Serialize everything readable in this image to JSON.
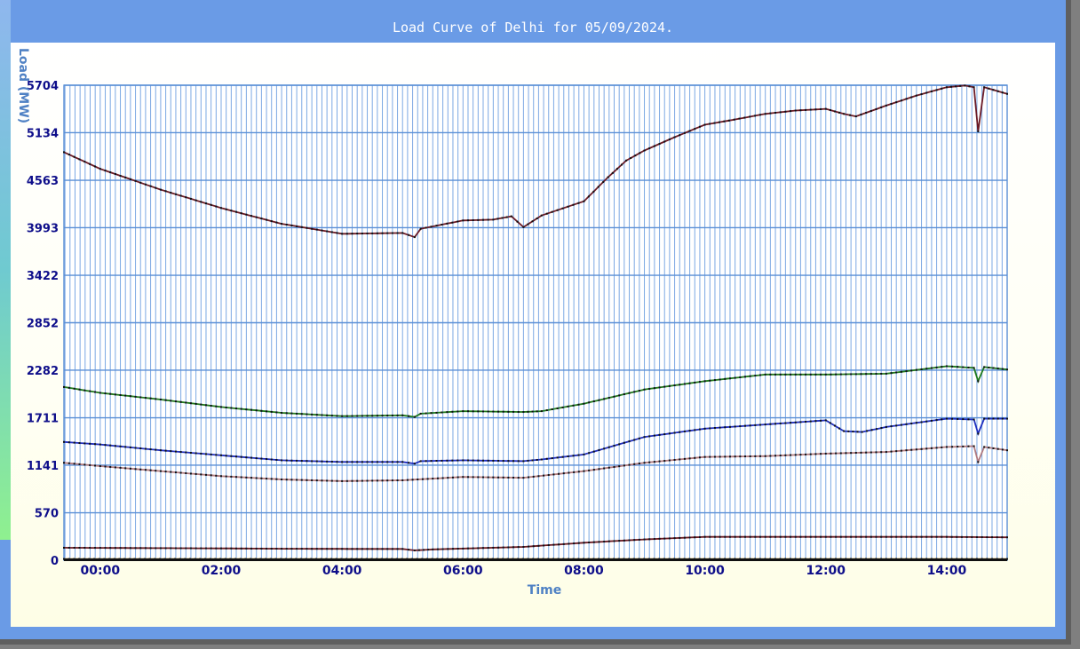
{
  "window": {
    "title": "Load Curve of Delhi for 05/09/2024."
  },
  "colors": {
    "frame": "#6a9be6",
    "grid": "#6e9fe0",
    "series": [
      "#6b1a26",
      "#1e7a1e",
      "#1f2fbf",
      "#b07a80",
      "#6b1a26",
      "#b08000"
    ]
  },
  "chart_data": {
    "type": "line",
    "title": "Load Curve of Delhi for 05/09/2024.",
    "xlabel": "Time",
    "ylabel": "Load (MW)",
    "ylim": [
      0,
      5704
    ],
    "xlim_hours": [
      -0.6,
      15.0
    ],
    "y_ticks": [
      0,
      570,
      1141,
      1711,
      2282,
      2852,
      3422,
      3993,
      4563,
      5134,
      5704
    ],
    "x_ticks": [
      "00:00",
      "02:00",
      "04:00",
      "06:00",
      "08:00",
      "10:00",
      "12:00",
      "14:00"
    ],
    "x_tick_hours": [
      0,
      2,
      4,
      6,
      8,
      10,
      12,
      14
    ],
    "grid": true,
    "legend": "none",
    "series": [
      {
        "points": [
          [
            -0.6,
            4900
          ],
          [
            0.0,
            4700
          ],
          [
            1.0,
            4450
          ],
          [
            2.0,
            4230
          ],
          [
            3.0,
            4040
          ],
          [
            4.0,
            3920
          ],
          [
            5.0,
            3930
          ],
          [
            5.2,
            3880
          ],
          [
            5.3,
            3980
          ],
          [
            6.0,
            4080
          ],
          [
            6.5,
            4090
          ],
          [
            6.8,
            4130
          ],
          [
            7.0,
            4000
          ],
          [
            7.3,
            4140
          ],
          [
            8.0,
            4310
          ],
          [
            8.4,
            4600
          ],
          [
            8.7,
            4800
          ],
          [
            9.0,
            4920
          ],
          [
            9.5,
            5080
          ],
          [
            10.0,
            5230
          ],
          [
            10.4,
            5280
          ],
          [
            11.0,
            5360
          ],
          [
            11.5,
            5400
          ],
          [
            12.0,
            5420
          ],
          [
            12.3,
            5360
          ],
          [
            12.5,
            5330
          ],
          [
            13.0,
            5460
          ],
          [
            13.5,
            5580
          ],
          [
            14.0,
            5680
          ],
          [
            14.3,
            5700
          ],
          [
            14.45,
            5680
          ],
          [
            14.52,
            5150
          ],
          [
            14.62,
            5680
          ],
          [
            15.0,
            5600
          ]
        ]
      },
      {
        "points": [
          [
            -0.6,
            2080
          ],
          [
            0.0,
            2010
          ],
          [
            1.0,
            1930
          ],
          [
            2.0,
            1840
          ],
          [
            3.0,
            1770
          ],
          [
            4.0,
            1730
          ],
          [
            5.0,
            1740
          ],
          [
            5.2,
            1720
          ],
          [
            5.3,
            1760
          ],
          [
            6.0,
            1790
          ],
          [
            7.0,
            1780
          ],
          [
            7.3,
            1790
          ],
          [
            8.0,
            1880
          ],
          [
            9.0,
            2050
          ],
          [
            10.0,
            2150
          ],
          [
            11.0,
            2230
          ],
          [
            12.0,
            2230
          ],
          [
            13.0,
            2240
          ],
          [
            14.0,
            2330
          ],
          [
            14.45,
            2310
          ],
          [
            14.52,
            2150
          ],
          [
            14.62,
            2320
          ],
          [
            15.0,
            2290
          ]
        ]
      },
      {
        "points": [
          [
            -0.6,
            1420
          ],
          [
            0.0,
            1390
          ],
          [
            1.0,
            1320
          ],
          [
            2.0,
            1260
          ],
          [
            3.0,
            1200
          ],
          [
            4.0,
            1180
          ],
          [
            5.0,
            1180
          ],
          [
            5.2,
            1160
          ],
          [
            5.3,
            1190
          ],
          [
            6.0,
            1200
          ],
          [
            7.0,
            1190
          ],
          [
            7.3,
            1210
          ],
          [
            8.0,
            1270
          ],
          [
            9.0,
            1480
          ],
          [
            10.0,
            1580
          ],
          [
            11.0,
            1630
          ],
          [
            12.0,
            1680
          ],
          [
            12.3,
            1550
          ],
          [
            12.6,
            1540
          ],
          [
            13.0,
            1600
          ],
          [
            14.0,
            1700
          ],
          [
            14.45,
            1690
          ],
          [
            14.52,
            1520
          ],
          [
            14.62,
            1700
          ],
          [
            15.0,
            1700
          ]
        ]
      },
      {
        "points": [
          [
            -0.6,
            1170
          ],
          [
            0.0,
            1130
          ],
          [
            1.0,
            1070
          ],
          [
            2.0,
            1010
          ],
          [
            3.0,
            970
          ],
          [
            4.0,
            950
          ],
          [
            5.0,
            960
          ],
          [
            6.0,
            1000
          ],
          [
            7.0,
            990
          ],
          [
            8.0,
            1070
          ],
          [
            9.0,
            1170
          ],
          [
            10.0,
            1240
          ],
          [
            11.0,
            1250
          ],
          [
            12.0,
            1280
          ],
          [
            13.0,
            1300
          ],
          [
            14.0,
            1360
          ],
          [
            14.45,
            1370
          ],
          [
            14.52,
            1180
          ],
          [
            14.62,
            1360
          ],
          [
            15.0,
            1320
          ]
        ]
      },
      {
        "points": [
          [
            -0.6,
            150
          ],
          [
            0.0,
            148
          ],
          [
            1.0,
            145
          ],
          [
            2.0,
            142
          ],
          [
            3.0,
            138
          ],
          [
            4.0,
            136
          ],
          [
            5.0,
            135
          ],
          [
            5.2,
            118
          ],
          [
            5.5,
            130
          ],
          [
            6.0,
            140
          ],
          [
            7.0,
            160
          ],
          [
            8.0,
            210
          ],
          [
            9.0,
            250
          ],
          [
            10.0,
            280
          ],
          [
            12.0,
            280
          ],
          [
            14.0,
            280
          ],
          [
            15.0,
            275
          ]
        ]
      },
      {
        "points": [
          [
            -0.6,
            15
          ],
          [
            15.0,
            15
          ]
        ]
      }
    ]
  }
}
